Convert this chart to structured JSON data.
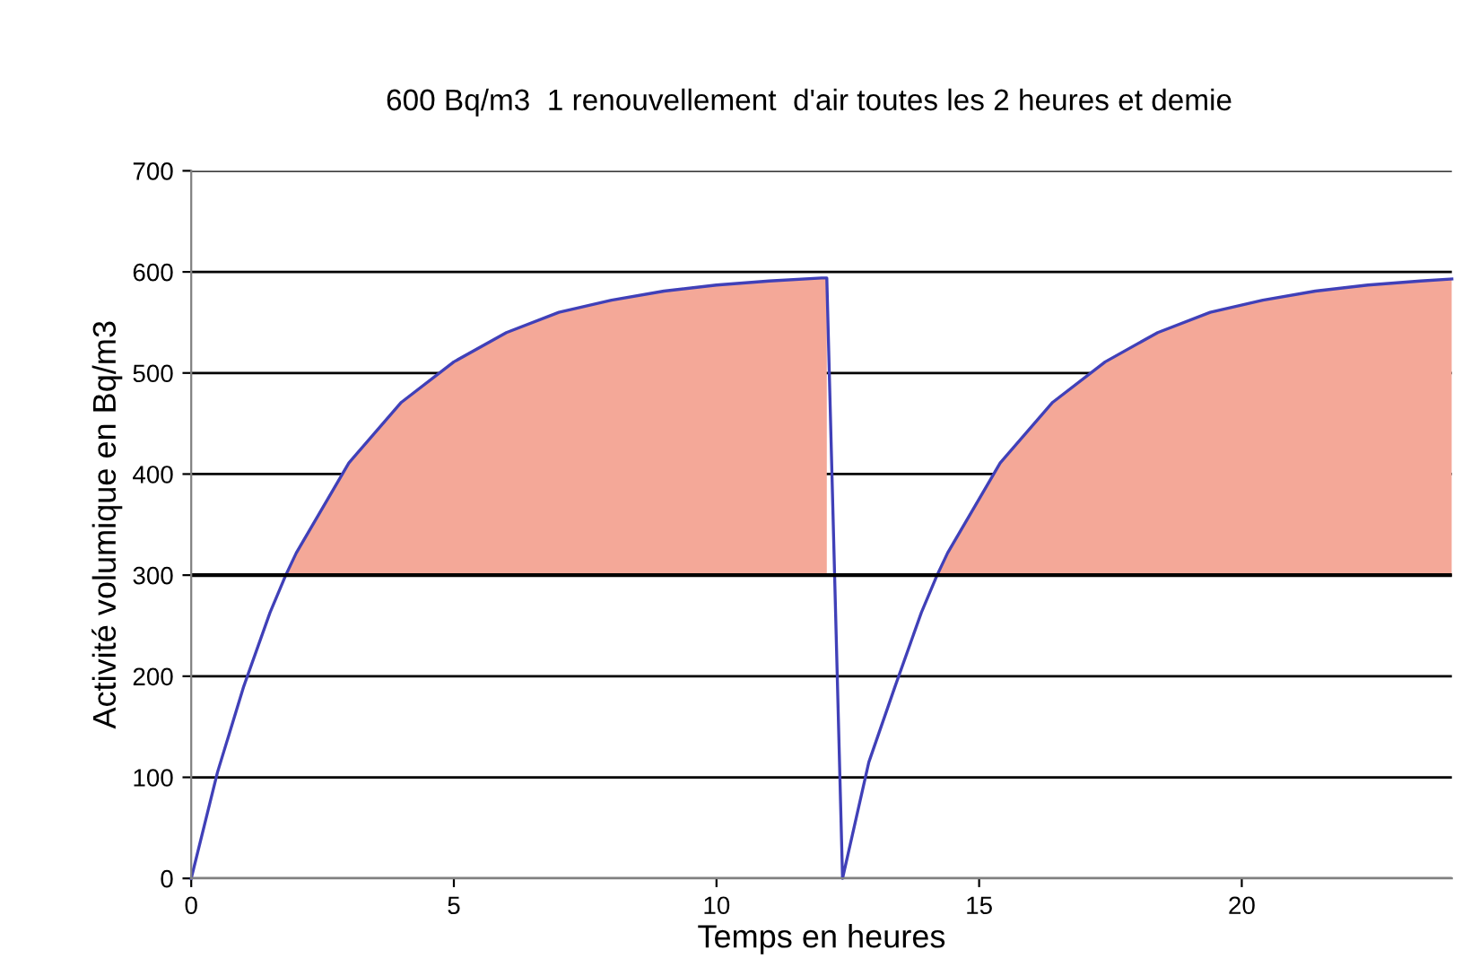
{
  "chart_data": {
    "type": "line",
    "title": "600 Bq/m3  1 renouvellement  d'air toutes les 2 heures et demie",
    "xlabel": "Temps en heures",
    "ylabel": "Activité volumique en Bq/m3",
    "x": [
      0,
      0.5,
      1,
      1.5,
      1.8,
      2,
      3,
      4,
      5,
      6,
      7,
      8,
      9,
      10,
      11,
      12,
      12.1,
      12.4,
      12.9,
      13.4,
      13.9,
      14.2,
      14.4,
      15.4,
      16.4,
      17.4,
      18.4,
      19.4,
      20.4,
      21.4,
      22.4,
      23.4,
      24
    ],
    "series": [
      {
        "color": "#4040b8",
        "colors": [
          "#f4a898",
          "#f4a898",
          "#f4a898",
          "#f4a898",
          "#f4a898",
          "#f4a898",
          "#f4a898",
          "#f4a898",
          "#f4a898",
          "#f4a898",
          "#f4a898",
          "#f4a898",
          "#f4a898",
          "#f4a898",
          "#f4a898",
          "#f4a898",
          "#f4a898",
          "#f4a898",
          "#f4a898",
          "#f4a898",
          "#f4a898",
          "#f4a898",
          "#f4a898",
          "#f4a898",
          "#f4a898",
          "#f4a898",
          "#f4a898",
          "#f4a898",
          "#f4a898",
          "#f4a898",
          "#f4a898",
          "#f4a898",
          "#f4a898"
        ],
        "values": [
          0,
          105,
          190,
          263,
          300,
          322,
          411,
          471,
          511,
          540,
          560,
          572,
          581,
          587,
          591,
          594,
          594,
          0,
          115,
          190,
          263,
          300,
          322,
          411,
          471,
          511,
          540,
          560,
          572,
          581,
          587,
          591,
          593
        ],
        "lower": [
          null,
          null,
          null,
          null,
          300,
          300,
          300,
          300,
          300,
          300,
          300,
          300,
          300,
          300,
          300,
          300,
          300,
          null,
          null,
          null,
          null,
          300,
          300,
          300,
          300,
          300,
          300,
          300,
          300,
          300,
          300,
          300,
          300
        ],
        "upper": [
          null,
          null,
          null,
          null,
          300,
          322,
          411,
          471,
          511,
          540,
          560,
          572,
          581,
          587,
          591,
          594,
          594,
          null,
          null,
          null,
          null,
          300,
          322,
          411,
          471,
          511,
          540,
          560,
          572,
          581,
          587,
          591,
          593
        ]
      }
    ],
    "xlim": [
      0,
      24
    ],
    "xticks": [
      0,
      5,
      10,
      15,
      20
    ],
    "ylim": [
      0,
      700
    ],
    "yticks": [
      0,
      100,
      200,
      300,
      400,
      500,
      600,
      700
    ],
    "grid": "y",
    "legend": false,
    "marker": "none",
    "line_style": "solid",
    "ref_lines": [
      {
        "axis": "y",
        "value": 300,
        "color": "#000000"
      }
    ]
  }
}
